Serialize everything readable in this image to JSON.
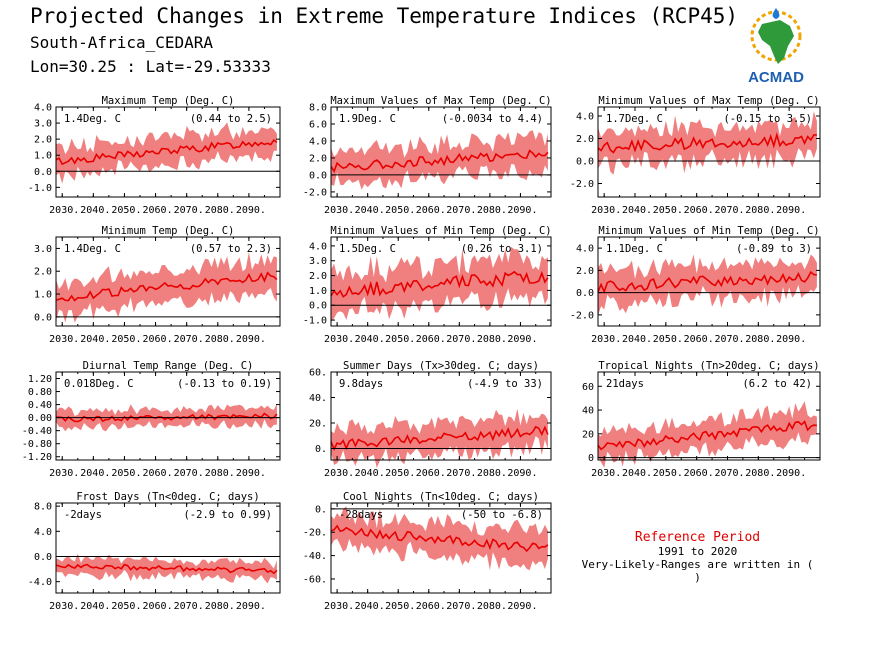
{
  "header": {
    "title": "Projected Changes in Extreme Temperature Indices (RCP45)",
    "location": "South-Africa_CEDARA",
    "coords": "Lon=30.25 : Lat=-29.53333"
  },
  "logo": {
    "text": "ACMAD",
    "icon": "africa-map-sun-raindrop-icon"
  },
  "colors": {
    "band": "#f08080",
    "line": "#e80000",
    "ref_title": "#e00000"
  },
  "reference": {
    "title": "Reference Period",
    "years": "1991 to 2020",
    "note": "Very-Likely-Ranges are written in ( )"
  },
  "chart_data": [
    {
      "id": "txmean",
      "type": "area",
      "title": "Maximum Temp (Deg. C)",
      "value_label": "1.4Deg. C",
      "range_label": "(0.44 to 2.5)",
      "x_ticks": [
        "2030.",
        "2040.",
        "2050.",
        "2060.",
        "2070.",
        "2080.",
        "2090."
      ],
      "y_ticks": [
        "4.0",
        "3.0",
        "2.0",
        "1.0",
        "0.0",
        "-1.0"
      ],
      "ylim": [
        -1.6,
        4.0
      ],
      "xlim": [
        2028,
        2100
      ],
      "trend": [
        0.6,
        1.9
      ],
      "band_width": 0.9,
      "var": 0.25
    },
    {
      "id": "txx",
      "type": "area",
      "title": "Maximum Values of Max Temp (Deg. C)",
      "value_label": "1.9Deg. C",
      "range_label": "(-0.0034 to 4.4)",
      "x_ticks": [
        "2030.",
        "2040.",
        "2050.",
        "2060.",
        "2070.",
        "2080.",
        "2090."
      ],
      "y_ticks": [
        "8.0",
        "6.0",
        "4.0",
        "2.0",
        "0.0",
        "-2.0"
      ],
      "ylim": [
        -2.6,
        8.0
      ],
      "xlim": [
        2028,
        2100
      ],
      "trend": [
        0.9,
        2.6
      ],
      "band_width": 1.9,
      "var": 0.55
    },
    {
      "id": "txn",
      "type": "area",
      "title": "Minimum Values of Max Temp (Deg. C)",
      "value_label": "1.7Deg. C",
      "range_label": "(-0.15 to 3.5)",
      "x_ticks": [
        "2030.",
        "2040.",
        "2050.",
        "2060.",
        "2070.",
        "2080.",
        "2090."
      ],
      "y_ticks": [
        "4.0",
        "2.0",
        "0.0",
        "-2.0"
      ],
      "ylim": [
        -3.2,
        4.8
      ],
      "xlim": [
        2028,
        2100
      ],
      "trend": [
        1.2,
        2.0
      ],
      "band_width": 1.5,
      "var": 0.5
    },
    {
      "id": "tnmean",
      "type": "area",
      "title": "Minimum Temp (Deg. C)",
      "value_label": "1.4Deg. C",
      "range_label": "(0.57 to 2.3)",
      "x_ticks": [
        "2030.",
        "2040.",
        "2050.",
        "2060.",
        "2070.",
        "2080.",
        "2090."
      ],
      "y_ticks": [
        "3.0",
        "2.0",
        "1.0",
        "0.0"
      ],
      "ylim": [
        -0.4,
        3.5
      ],
      "xlim": [
        2028,
        2100
      ],
      "trend": [
        0.8,
        1.8
      ],
      "band_width": 0.7,
      "var": 0.2
    },
    {
      "id": "tnn",
      "type": "area",
      "title": "Minimum Values of Min Temp (Deg. C)",
      "value_label": "1.5Deg. C",
      "range_label": "(0.26 to 3.1)",
      "x_ticks": [
        "2030.",
        "2040.",
        "2050.",
        "2060.",
        "2070.",
        "2080.",
        "2090."
      ],
      "y_ticks": [
        "4.0",
        "3.0",
        "2.0",
        "1.0",
        "0.0",
        "-1.0"
      ],
      "ylim": [
        -1.4,
        4.6
      ],
      "xlim": [
        2028,
        2100
      ],
      "trend": [
        0.9,
        2.0
      ],
      "band_width": 1.3,
      "var": 0.45
    },
    {
      "id": "tnx",
      "type": "area",
      "title": "Minimum Values of Min Temp (Deg. C)",
      "value_label": "1.1Deg. C",
      "range_label": "(-0.89 to 3)",
      "x_ticks": [
        "2030.",
        "2040.",
        "2050.",
        "2060.",
        "2070.",
        "2080.",
        "2090."
      ],
      "y_ticks": [
        "4.0",
        "2.0",
        "0.0",
        "-2.0"
      ],
      "ylim": [
        -3.0,
        5.0
      ],
      "xlim": [
        2028,
        2100
      ],
      "trend": [
        0.5,
        1.5
      ],
      "band_width": 1.5,
      "var": 0.5
    },
    {
      "id": "dtr",
      "type": "area",
      "title": "Diurnal Temp Range (Deg. C)",
      "value_label": "0.018Deg. C",
      "range_label": "(-0.13 to 0.19)",
      "x_ticks": [
        "2030.",
        "2040.",
        "2050.",
        "2060.",
        "2070.",
        "2080.",
        "2090."
      ],
      "y_ticks": [
        "1.20",
        "0.80",
        "0.40",
        "0.00",
        "-0.40",
        "-0.80",
        "-1.20"
      ],
      "ylim": [
        -1.3,
        1.4
      ],
      "xlim": [
        2028,
        2100
      ],
      "trend": [
        -0.05,
        0.05
      ],
      "band_width": 0.25,
      "var": 0.08
    },
    {
      "id": "su",
      "type": "area",
      "title": "Summer Days (Tx>30deg. C; days)",
      "value_label": "9.8days",
      "range_label": "(-4.9 to 33)",
      "x_ticks": [
        "2030.",
        "2040.",
        "2050.",
        "2060.",
        "2070.",
        "2080.",
        "2090."
      ],
      "y_ticks": [
        "60.",
        "40.",
        "20.",
        "0."
      ],
      "ylim": [
        -9,
        60
      ],
      "xlim": [
        2028,
        2100
      ],
      "trend": [
        3,
        14
      ],
      "band_width": 12,
      "var": 4
    },
    {
      "id": "tr",
      "type": "area",
      "title": "Tropical Nights (Tn>20deg. C; days)",
      "value_label": "21days",
      "range_label": "(6.2 to 42)",
      "x_ticks": [
        "2030.",
        "2040.",
        "2050.",
        "2060.",
        "2070.",
        "2080.",
        "2090."
      ],
      "y_ticks": [
        "60",
        "40",
        "20",
        "0"
      ],
      "ylim": [
        -2,
        72
      ],
      "xlim": [
        2028,
        2100
      ],
      "trend": [
        9,
        28
      ],
      "band_width": 12,
      "var": 4
    },
    {
      "id": "fd",
      "type": "area",
      "title": "Frost Days (Tn<0deg. C; days)",
      "value_label": "-2days",
      "range_label": "(-2.9 to 0.99)",
      "x_ticks": [
        "2030.",
        "2040.",
        "2050.",
        "2060.",
        "2070.",
        "2080.",
        "2090."
      ],
      "y_ticks": [
        "8.0",
        "4.0",
        "0.0",
        "-4.0"
      ],
      "ylim": [
        -5.8,
        8.5
      ],
      "xlim": [
        2028,
        2100
      ],
      "trend": [
        -1.4,
        -2.3
      ],
      "band_width": 1.3,
      "var": 0.4
    },
    {
      "id": "cn",
      "type": "area",
      "title": "Cool Nights (Tn<10deg. C; days)",
      "value_label": "-28days",
      "range_label": "(-50 to -6.8)",
      "x_ticks": [
        "2030.",
        "2040.",
        "2050.",
        "2060.",
        "2070.",
        "2080.",
        "2090."
      ],
      "y_ticks": [
        "0.",
        "-20.",
        "-40.",
        "-60."
      ],
      "ylim": [
        -72,
        5
      ],
      "xlim": [
        2028,
        2100
      ],
      "trend": [
        -18,
        -34
      ],
      "band_width": 14,
      "var": 4
    }
  ]
}
